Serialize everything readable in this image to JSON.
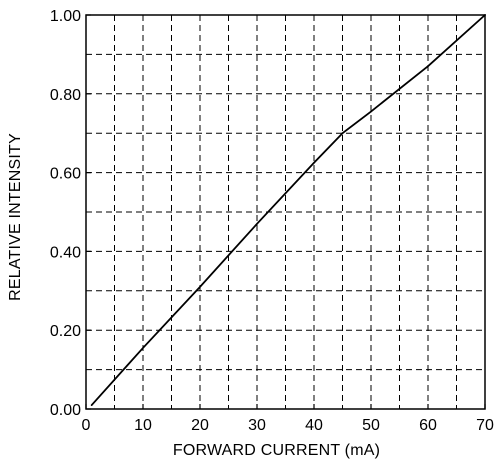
{
  "chart_data": {
    "type": "line",
    "title": "",
    "xlabel": "FORWARD CURRENT (mA)",
    "ylabel": "RELATIVE INTENSITY",
    "xlim": [
      0,
      70
    ],
    "ylim": [
      0,
      1.0
    ],
    "x_ticks": [
      0,
      10,
      20,
      30,
      40,
      50,
      60,
      70
    ],
    "y_ticks": [
      0,
      0.2,
      0.4,
      0.6,
      0.8,
      1.0
    ],
    "x_tick_labels": [
      "0",
      "10",
      "20",
      "30",
      "40",
      "50",
      "60",
      "70"
    ],
    "y_tick_labels": [
      "0.00",
      "0.20",
      "0.40",
      "0.60",
      "0.80",
      "1.00"
    ],
    "x_minor_grid": [
      5,
      15,
      25,
      35,
      45,
      55,
      65
    ],
    "y_minor_grid": [
      0.1,
      0.3,
      0.5,
      0.7,
      0.9
    ],
    "grid": true,
    "grid_style": "dashed",
    "legend": "none",
    "series": [
      {
        "x": [
          1,
          10,
          20,
          30,
          40,
          45,
          50,
          60,
          70
        ],
        "y": [
          0.01,
          0.155,
          0.31,
          0.47,
          0.625,
          0.7,
          0.755,
          0.87,
          1.0
        ]
      }
    ],
    "line_color": "#000000",
    "grid_color": "#000000"
  }
}
